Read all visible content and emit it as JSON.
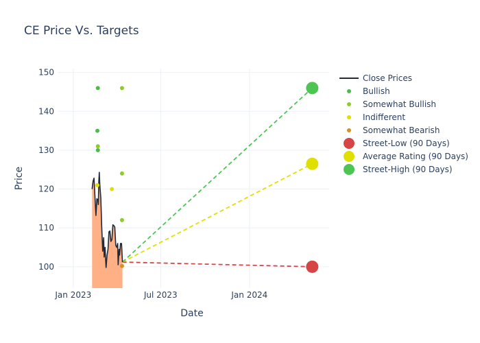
{
  "chart_data": {
    "type": "line",
    "title": "CE Price Vs. Targets",
    "xlabel": "Date",
    "ylabel": "Price",
    "xlim": [
      "2022-12-01",
      "2024-06-14"
    ],
    "ylim": [
      94.5,
      151
    ],
    "x_ticks": [
      {
        "date": "2023-01-01",
        "label": "Jan 2023"
      },
      {
        "date": "2023-07-01",
        "label": "Jul 2023"
      },
      {
        "date": "2024-01-01",
        "label": "Jan 2024"
      }
    ],
    "y_ticks": [
      100,
      110,
      120,
      130,
      140,
      150
    ],
    "grid": true,
    "legend": "right",
    "colors": {
      "close": "#1f2a3a",
      "fill": "#ffb085",
      "bullish": "#4cbb4c",
      "somewhat_bullish": "#8fcc29",
      "indifferent": "#e0e000",
      "somewhat_bearish": "#d4921e",
      "street_low": "#d64545",
      "average": "#e0e000",
      "street_high": "#4cc552"
    },
    "close_prices": [
      [
        "2023-02-09",
        120.0
      ],
      [
        "2023-02-11",
        122.0
      ],
      [
        "2023-02-13",
        122.8
      ],
      [
        "2023-02-15",
        118.0
      ],
      [
        "2023-02-17",
        113.2
      ],
      [
        "2023-02-19",
        117.5
      ],
      [
        "2023-02-21",
        117.2
      ],
      [
        "2023-02-22",
        116.0
      ],
      [
        "2023-02-23",
        122.0
      ],
      [
        "2023-02-24",
        124.3
      ],
      [
        "2023-02-25",
        121.0
      ],
      [
        "2023-02-27",
        117.8
      ],
      [
        "2023-02-28",
        114.0
      ],
      [
        "2023-03-01",
        110.0
      ],
      [
        "2023-03-03",
        104.0
      ],
      [
        "2023-03-05",
        107.5
      ],
      [
        "2023-03-06",
        102.5
      ],
      [
        "2023-03-08",
        105.0
      ],
      [
        "2023-03-09",
        102.0
      ],
      [
        "2023-03-10",
        99.8
      ],
      [
        "2023-03-12",
        103.0
      ],
      [
        "2023-03-14",
        104.5
      ],
      [
        "2023-03-16",
        109.0
      ],
      [
        "2023-03-18",
        109.2
      ],
      [
        "2023-03-20",
        106.5
      ],
      [
        "2023-03-22",
        107.0
      ],
      [
        "2023-03-24",
        110.8
      ],
      [
        "2023-03-26",
        110.6
      ],
      [
        "2023-03-28",
        110.2
      ],
      [
        "2023-03-30",
        105.5
      ],
      [
        "2023-04-01",
        105.0
      ],
      [
        "2023-04-03",
        106.0
      ],
      [
        "2023-04-04",
        100.5
      ],
      [
        "2023-04-06",
        104.5
      ],
      [
        "2023-04-07",
        103.0
      ],
      [
        "2023-04-09",
        106.0
      ],
      [
        "2023-04-11",
        106.0
      ],
      [
        "2023-04-13",
        101.2
      ]
    ],
    "series": [
      {
        "name": "Bullish",
        "points": [
          [
            "2023-02-21",
            146
          ],
          [
            "2023-02-20",
            135
          ],
          [
            "2023-02-21",
            130
          ]
        ]
      },
      {
        "name": "Somewhat Bullish",
        "points": [
          [
            "2023-02-21",
            131
          ],
          [
            "2023-04-12",
            146
          ],
          [
            "2023-04-12",
            124
          ],
          [
            "2023-04-12",
            112
          ]
        ]
      },
      {
        "name": "Indifferent",
        "points": [
          [
            "2023-02-20",
            121
          ],
          [
            "2023-03-22",
            120
          ]
        ]
      },
      {
        "name": "Somewhat Bearish",
        "points": [
          [
            "2023-04-12",
            100.2
          ]
        ]
      }
    ],
    "targets": [
      {
        "name": "Street-Low (90 Days)",
        "value": 100,
        "date": "2024-05-10"
      },
      {
        "name": "Average Rating (90 Days)",
        "value": 126.5,
        "date": "2024-05-10"
      },
      {
        "name": "Street-High (90 Days)",
        "value": 146,
        "date": "2024-05-10"
      }
    ],
    "target_start": {
      "date": "2023-04-13",
      "value": 101.2
    },
    "legend_entries": [
      "Close Prices",
      "Bullish",
      "Somewhat Bullish",
      "Indifferent",
      "Somewhat Bearish",
      "Street-Low (90 Days)",
      "Average Rating (90 Days)",
      "Street-High (90 Days)"
    ]
  }
}
